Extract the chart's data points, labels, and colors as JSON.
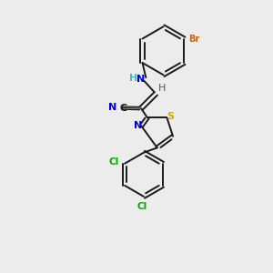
{
  "background_color": "#ececec",
  "bond_color": "#1a1a1a",
  "N_color": "#0000cc",
  "S_color": "#ccaa00",
  "Br_color": "#cc6600",
  "Cl_color": "#00aa00",
  "H_color": "#4ab8c4",
  "figsize": [
    3.0,
    3.0
  ],
  "dpi": 100,
  "xlim": [
    0,
    10
  ],
  "ylim": [
    0,
    10
  ]
}
